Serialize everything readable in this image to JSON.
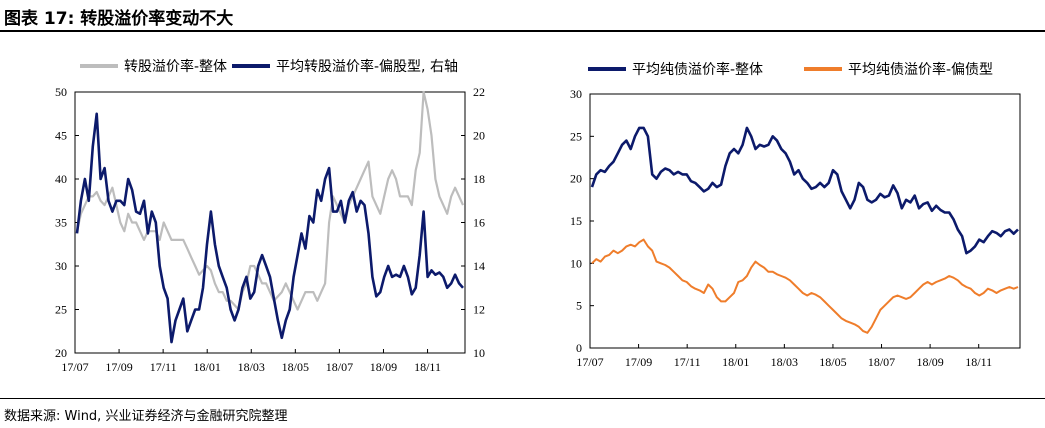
{
  "figure_title": "图表 17:  转股溢价率变动不大",
  "source": "数据来源:  Wind, 兴业证券经济与金融研究院整理",
  "colors": {
    "gray": "#bdbdbd",
    "navy": "#0c1a6b",
    "orange": "#ef7d2b"
  },
  "chart_data": [
    {
      "type": "line",
      "title": "",
      "legend_position": "top",
      "x_tick_labels": [
        "17/07",
        "17/09",
        "17/11",
        "18/01",
        "18/03",
        "18/05",
        "18/07",
        "18/09",
        "18/11"
      ],
      "y_left": {
        "ticks": [
          20,
          25,
          30,
          35,
          40,
          45,
          50
        ],
        "ylim": [
          20,
          50
        ]
      },
      "y_right": {
        "ticks": [
          10,
          12,
          14,
          16,
          18,
          20,
          22
        ],
        "ylim": [
          10,
          22
        ]
      },
      "series": [
        {
          "name": "转股溢价率-整体",
          "axis": "left",
          "color_key": "gray",
          "values": [
            34,
            36,
            37,
            38,
            38,
            38.5,
            37.5,
            37,
            38,
            39,
            37,
            35,
            34,
            36,
            35,
            35,
            34,
            33,
            34,
            34,
            34,
            33,
            35,
            34,
            33,
            33,
            33,
            33,
            32,
            31,
            30,
            29,
            29.5,
            30,
            29.5,
            28,
            27,
            27,
            26,
            26,
            25.5,
            25,
            27,
            28,
            30,
            30,
            29,
            28,
            28,
            27,
            26,
            26.5,
            27,
            28,
            27,
            26,
            25,
            26,
            27,
            27,
            27,
            26,
            27,
            28,
            35,
            38,
            37,
            36,
            35,
            37,
            38,
            39,
            40,
            41,
            42,
            38,
            37,
            36,
            38,
            40,
            41,
            40,
            38,
            38,
            38,
            37,
            41,
            43,
            50,
            48,
            45,
            40,
            38,
            37,
            36,
            38,
            39,
            38,
            37
          ]
        },
        {
          "name": "平均转股溢价率-偏股型, 右轴",
          "axis": "right",
          "color_key": "navy",
          "values": [
            15.5,
            17,
            18,
            17,
            19.5,
            21,
            18,
            18.5,
            17,
            16.5,
            17,
            17,
            16.8,
            18,
            17.5,
            16.5,
            16.4,
            17,
            15.5,
            16.5,
            16,
            14,
            13,
            12.5,
            10.5,
            11.5,
            12,
            12.5,
            11,
            11.5,
            12,
            12,
            13,
            15,
            16.5,
            15,
            14,
            13.5,
            13,
            12,
            11.5,
            12,
            13,
            13.5,
            12.5,
            12.8,
            14,
            14.5,
            14,
            13.5,
            12.5,
            11.5,
            10.7,
            11.5,
            12,
            13.5,
            14.5,
            15.5,
            14.8,
            16.3,
            16,
            17.5,
            17,
            18,
            18.5,
            16.5,
            16.5,
            17,
            16,
            17,
            17.4,
            16.5,
            17,
            16.8,
            15.5,
            13.5,
            12.6,
            12.8,
            13.5,
            14,
            13.5,
            13.6,
            13.5,
            14,
            13.5,
            12.7,
            13,
            14.5,
            16.5,
            13.5,
            13.8,
            13.6,
            13.7,
            13.5,
            13,
            13.2,
            13.6,
            13.2,
            13
          ]
        }
      ]
    },
    {
      "type": "line",
      "title": "",
      "legend_position": "top",
      "x_tick_labels": [
        "17/07",
        "17/09",
        "17/11",
        "18/01",
        "18/03",
        "18/05",
        "18/07",
        "18/09",
        "18/11"
      ],
      "y": {
        "ticks": [
          0,
          5,
          10,
          15,
          20,
          25,
          30
        ],
        "ylim": [
          0,
          30
        ]
      },
      "series": [
        {
          "name": "平均纯债溢价率-整体",
          "color_key": "navy",
          "values": [
            19,
            20.5,
            21,
            20.8,
            21.5,
            22,
            23,
            24,
            24.5,
            23.5,
            25,
            26,
            26,
            25,
            20.5,
            20,
            20.8,
            21.2,
            21,
            20.5,
            20.8,
            20.5,
            20.5,
            19.7,
            19.5,
            19,
            18.5,
            18.8,
            19.5,
            19,
            19.3,
            21.5,
            23,
            23.5,
            23,
            24,
            26,
            25,
            23.5,
            24,
            23.8,
            24,
            25,
            24.5,
            23.5,
            23,
            22,
            20.5,
            21,
            20,
            19.5,
            18.8,
            19,
            19.5,
            19,
            19.5,
            21,
            20.5,
            18.5,
            17.5,
            16.5,
            17.5,
            19.5,
            19,
            17.5,
            17.2,
            17.5,
            18.2,
            17.8,
            18,
            19.2,
            18.3,
            16.5,
            17.5,
            17.2,
            18,
            16.5,
            17,
            17.2,
            16.2,
            16.8,
            16.3,
            16,
            16,
            15.2,
            14,
            13.2,
            11.2,
            11.5,
            12,
            12.8,
            12.5,
            13.2,
            13.8,
            13.6,
            13.2,
            13.8,
            14,
            13.5,
            14
          ]
        },
        {
          "name": "平均纯债溢价率-偏债型",
          "color_key": "orange",
          "values": [
            10,
            10.5,
            10.2,
            10.8,
            11,
            11.5,
            11.2,
            11.5,
            12,
            12.2,
            12,
            12.5,
            12.8,
            12,
            11.5,
            10.2,
            10,
            9.8,
            9.5,
            9,
            8.5,
            8,
            7.8,
            7.3,
            7,
            6.8,
            6.5,
            7.5,
            7,
            6,
            5.5,
            5.5,
            6,
            6.5,
            7.8,
            8,
            8.5,
            9.5,
            10.2,
            9.8,
            9.5,
            9,
            9,
            8.7,
            8.5,
            8.3,
            8,
            7.5,
            7,
            6.5,
            6.2,
            6.5,
            6.3,
            6,
            5.5,
            5,
            4.5,
            4,
            3.5,
            3.2,
            3,
            2.8,
            2.5,
            2,
            1.8,
            2.5,
            3.5,
            4.5,
            5,
            5.5,
            6,
            6.2,
            6,
            5.8,
            6,
            6.5,
            7,
            7.5,
            7.8,
            7.5,
            7.8,
            8,
            8.2,
            8.5,
            8.3,
            8,
            7.5,
            7.2,
            7,
            6.5,
            6.2,
            6.5,
            7,
            6.8,
            6.5,
            6.8,
            7,
            7.2,
            7,
            7.2
          ]
        }
      ]
    }
  ]
}
